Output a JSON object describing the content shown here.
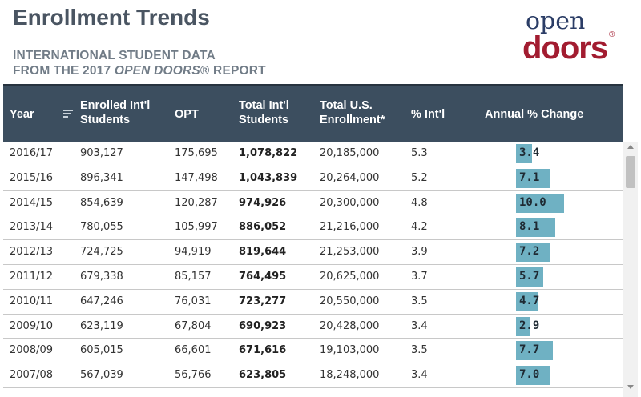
{
  "title": "Enrollment Trends",
  "subtitle_line1": "INTERNATIONAL STUDENT DATA",
  "subtitle_line2_prefix": "FROM THE 2017 ",
  "subtitle_line2_em": "OPEN DOORS",
  "subtitle_line2_suffix": "® REPORT",
  "logo": {
    "top": "open",
    "bottom": "doors",
    "reg": "®"
  },
  "headers": {
    "year": "Year",
    "enrolled_1": "Enrolled Int'l",
    "enrolled_2": "Students",
    "opt": "OPT",
    "total_1": "Total Int'l",
    "total_2": "Students",
    "us_1": "Total U.S.",
    "us_2": "Enrollment*",
    "pct": "% Int'l",
    "change": "Annual % Change"
  },
  "icons": {
    "sort": "sort-filter-icon"
  },
  "colors": {
    "header_bg": "#3c4e5f",
    "bar": "#6fb1c3",
    "logo_blue": "#2b3d66",
    "logo_red": "#a21c30"
  },
  "rows": [
    {
      "year": "2016/17",
      "enrolled": "903,127",
      "opt": "175,695",
      "total": "1,078,822",
      "us": "20,185,000",
      "pct": "5.3",
      "change": "3.4",
      "change_value": 3.4
    },
    {
      "year": "2015/16",
      "enrolled": "896,341",
      "opt": "147,498",
      "total": "1,043,839",
      "us": "20,264,000",
      "pct": "5.2",
      "change": "7.1",
      "change_value": 7.1
    },
    {
      "year": "2014/15",
      "enrolled": "854,639",
      "opt": "120,287",
      "total": "974,926",
      "us": "20,300,000",
      "pct": "4.8",
      "change": "10.0",
      "change_value": 10.0
    },
    {
      "year": "2013/14",
      "enrolled": "780,055",
      "opt": "105,997",
      "total": "886,052",
      "us": "21,216,000",
      "pct": "4.2",
      "change": "8.1",
      "change_value": 8.1
    },
    {
      "year": "2012/13",
      "enrolled": "724,725",
      "opt": "94,919",
      "total": "819,644",
      "us": "21,253,000",
      "pct": "3.9",
      "change": "7.2",
      "change_value": 7.2
    },
    {
      "year": "2011/12",
      "enrolled": "679,338",
      "opt": "85,157",
      "total": "764,495",
      "us": "20,625,000",
      "pct": "3.7",
      "change": "5.7",
      "change_value": 5.7
    },
    {
      "year": "2010/11",
      "enrolled": "647,246",
      "opt": "76,031",
      "total": "723,277",
      "us": "20,550,000",
      "pct": "3.5",
      "change": "4.7",
      "change_value": 4.7
    },
    {
      "year": "2009/10",
      "enrolled": "623,119",
      "opt": "67,804",
      "total": "690,923",
      "us": "20,428,000",
      "pct": "3.4",
      "change": "2.9",
      "change_value": 2.9
    },
    {
      "year": "2008/09",
      "enrolled": "605,015",
      "opt": "66,601",
      "total": "671,616",
      "us": "19,103,000",
      "pct": "3.5",
      "change": "7.7",
      "change_value": 7.7
    },
    {
      "year": "2007/08",
      "enrolled": "567,039",
      "opt": "56,766",
      "total": "623,805",
      "us": "18,248,000",
      "pct": "3.4",
      "change": "7.0",
      "change_value": 7.0
    }
  ]
}
